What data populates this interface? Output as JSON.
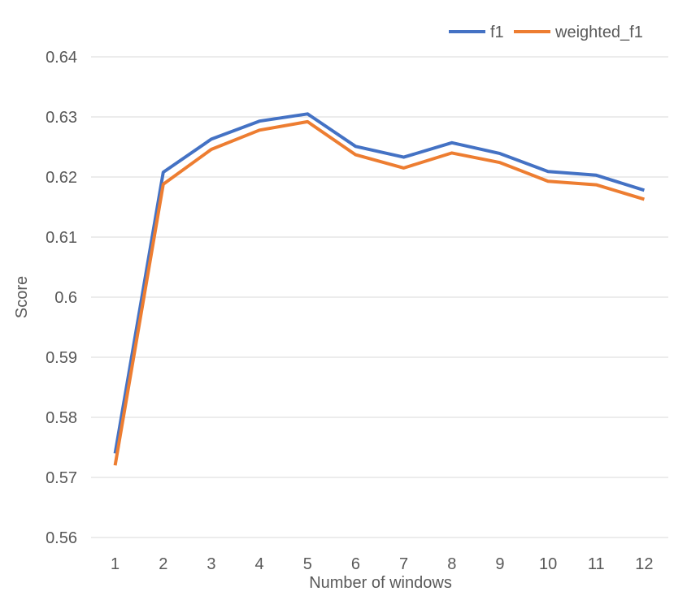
{
  "chart_data": {
    "type": "line",
    "title": "",
    "xlabel": "Number of windows",
    "ylabel": "Score",
    "x": [
      1,
      2,
      3,
      4,
      5,
      6,
      7,
      8,
      9,
      10,
      11,
      12
    ],
    "x_tick_labels": [
      "1",
      "2",
      "3",
      "4",
      "5",
      "6",
      "7",
      "8",
      "9",
      "10",
      "11",
      "12"
    ],
    "ylim": [
      0.56,
      0.64
    ],
    "y_ticks": [
      0.56,
      0.57,
      0.58,
      0.59,
      0.6,
      0.61,
      0.62,
      0.63,
      0.64
    ],
    "y_tick_labels": [
      "0.56",
      "0.57",
      "0.58",
      "0.59",
      "0.6",
      "0.61",
      "0.62",
      "0.63",
      "0.64"
    ],
    "grid": true,
    "legend_position": "top-right",
    "series": [
      {
        "name": "f1",
        "color": "#4472c4",
        "values": [
          0.574,
          0.6208,
          0.6263,
          0.6293,
          0.6305,
          0.6251,
          0.6233,
          0.6257,
          0.6239,
          0.6209,
          0.6203,
          0.6178
        ]
      },
      {
        "name": "weighted_f1",
        "color": "#ed7d31",
        "values": [
          0.572,
          0.6188,
          0.6246,
          0.6278,
          0.6292,
          0.6237,
          0.6215,
          0.624,
          0.6224,
          0.6193,
          0.6187,
          0.6163
        ]
      }
    ]
  }
}
